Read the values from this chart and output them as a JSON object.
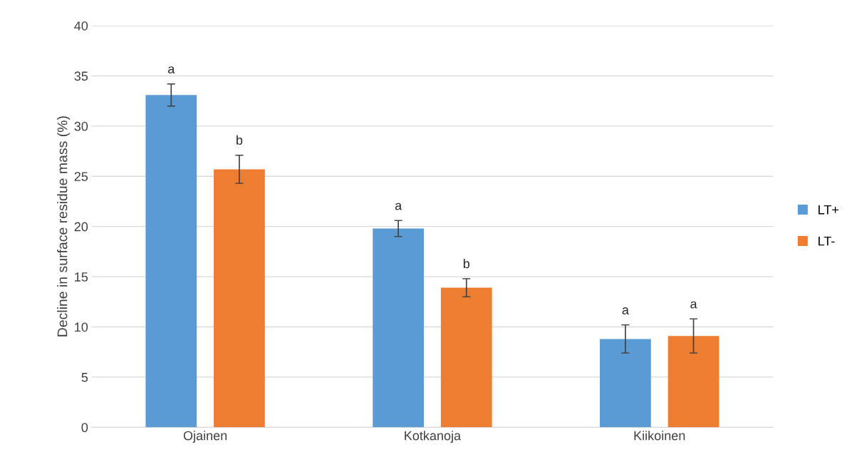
{
  "chart_data": {
    "type": "bar",
    "ylabel": "Decline in surface residue mass (%)",
    "categories": [
      "Ojainen",
      "Kotkanoja",
      "Kiikoinen"
    ],
    "series": [
      {
        "name": "LT+",
        "color": "#5b9bd5",
        "values": [
          33.1,
          19.8,
          8.8
        ],
        "errors": [
          1.1,
          0.8,
          1.4
        ],
        "value_labels": [
          "a",
          "a",
          "a"
        ]
      },
      {
        "name": "LT-",
        "color": "#ed7d31",
        "values": [
          25.7,
          13.9,
          9.1
        ],
        "errors": [
          1.4,
          0.9,
          1.7
        ],
        "value_labels": [
          "b",
          "b",
          "a"
        ]
      }
    ],
    "ylim": [
      0,
      40
    ],
    "yticks": [
      0,
      5,
      10,
      15,
      20,
      25,
      30,
      35,
      40
    ],
    "grid": "y",
    "legend": "right"
  }
}
